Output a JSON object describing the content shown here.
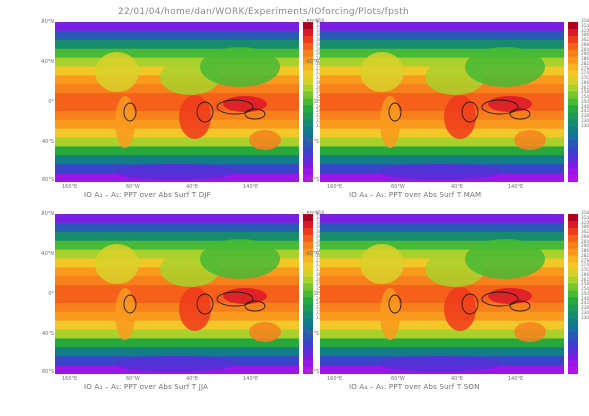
{
  "header": {
    "path": "22/01/04/home/dan/WORK/Experiments/IOforcing/Plots/fpsth"
  },
  "axes": {
    "lat_labels": [
      "80°N",
      "40°N",
      "0°",
      "40°S",
      "80°S"
    ],
    "lon_labels": [
      "160°E",
      "60°W",
      "40°E",
      "140°E"
    ]
  },
  "colorbar": {
    "ticks": [
      "318",
      "314",
      "310",
      "306",
      "302",
      "298",
      "294",
      "290",
      "286",
      "282",
      "278",
      "274",
      "270",
      "266",
      "262",
      "258",
      "254",
      "250",
      "246",
      "242",
      "238",
      "234",
      "230"
    ],
    "colors": [
      "#b3001f",
      "#d9182a",
      "#ee3a1c",
      "#f5601a",
      "#f7801d",
      "#f99a1f",
      "#f8b324",
      "#f1c827",
      "#d9d12a",
      "#a9d12c",
      "#75c62e",
      "#47b935",
      "#27a83d",
      "#1c9a55",
      "#168c6d",
      "#137d86",
      "#1d6ca0",
      "#2a58b6",
      "#3a44c8",
      "#5530d6",
      "#7a1fe0",
      "#9a16e6",
      "#b511ea"
    ]
  },
  "panels": [
    {
      "season_caption": "IO A₄ – A₁: PPT over Abs Surf T  DJF"
    },
    {
      "season_caption": "IO A₄ – A₁: PPT over Abs Surf T  MAM"
    },
    {
      "season_caption": "IO A₄ – A₁: PPT over Abs Surf T  JJA"
    },
    {
      "season_caption": "IO A₄ – A₁: PPT over Abs Surf T  SON"
    }
  ]
}
